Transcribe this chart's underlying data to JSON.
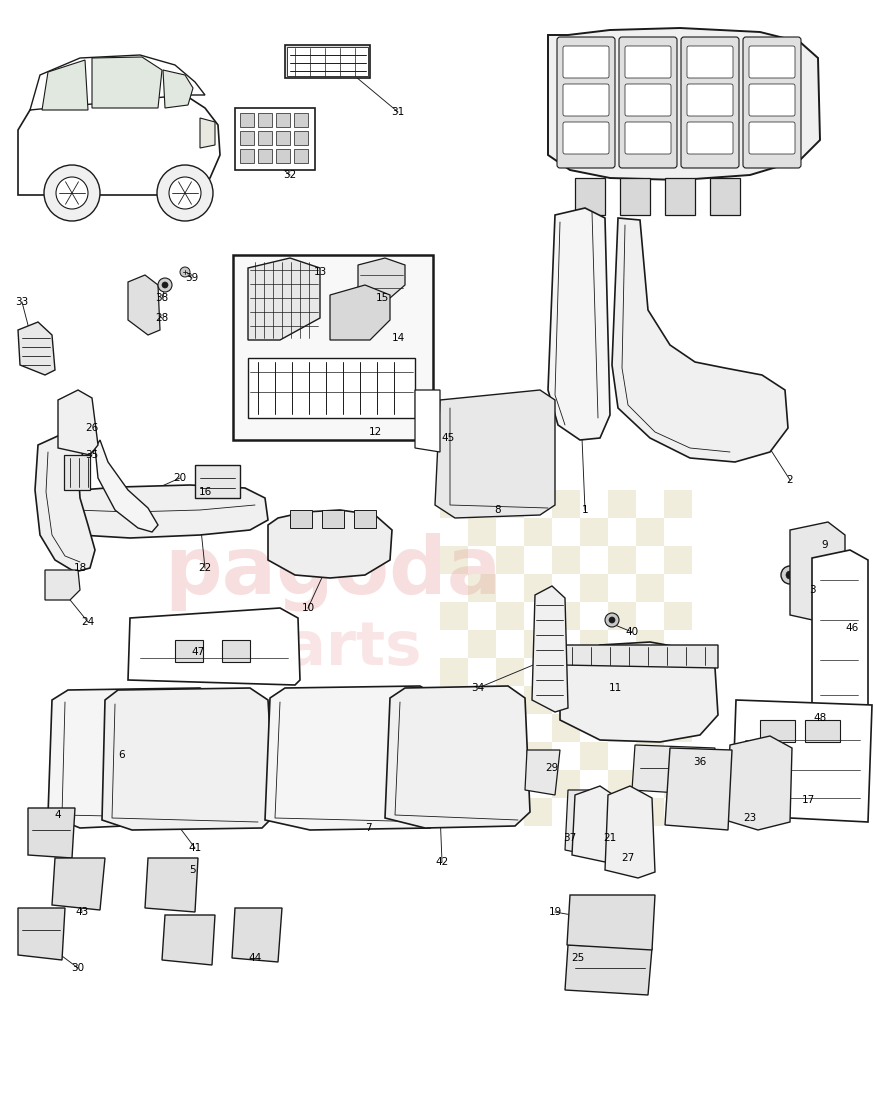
{
  "background_color": "#ffffff",
  "line_color": "#1a1a1a",
  "label_color": "#000000",
  "label_fontsize": 7.5,
  "watermark_text_color": "#f5c8c8",
  "checker_color": "#d4c090",
  "image_path": null
}
